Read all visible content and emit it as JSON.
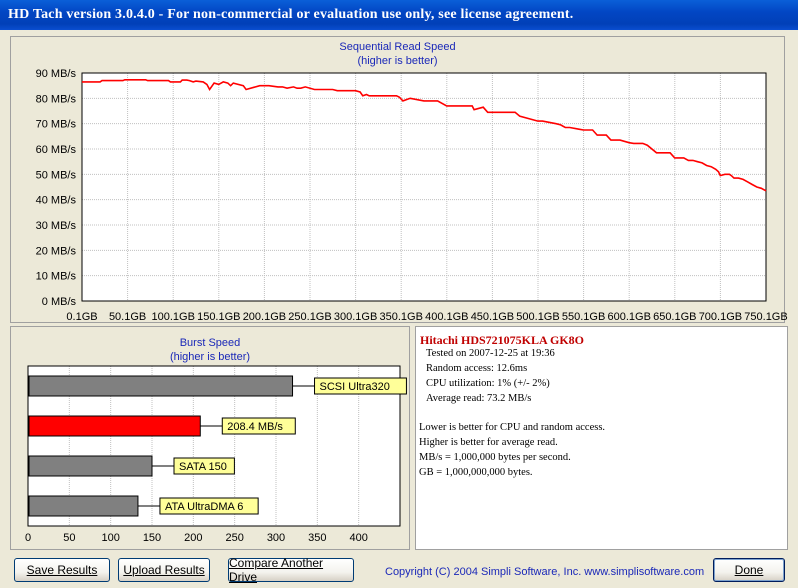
{
  "window": {
    "title": "HD Tach version 3.0.4.0  - For non-commercial or evaluation use only, see license agreement."
  },
  "seq_chart": {
    "chart_data": {
      "type": "line",
      "title": "Sequential Read Speed",
      "subtitle": "(higher is better)",
      "y_ticks": [
        "0 MB/s",
        "10 MB/s",
        "20 MB/s",
        "30 MB/s",
        "40 MB/s",
        "50 MB/s",
        "60 MB/s",
        "70 MB/s",
        "80 MB/s",
        "90 MB/s"
      ],
      "x_ticks": [
        "0.1GB",
        "50.1GB",
        "100.1GB",
        "150.1GB",
        "200.1GB",
        "250.1GB",
        "300.1GB",
        "350.1GB",
        "400.1GB",
        "450.1GB",
        "500.1GB",
        "550.1GB",
        "600.1GB",
        "650.1GB",
        "700.1GB",
        "750.1GB"
      ],
      "xlim": [
        0.1,
        750.1
      ],
      "ylim": [
        0,
        90
      ],
      "grid": true,
      "line_color": "#ff0000",
      "series": [
        {
          "x": [
            0.1,
            20,
            22,
            45,
            47,
            70,
            72,
            95,
            97,
            108,
            110,
            115,
            118,
            122,
            125,
            133,
            137,
            140,
            145,
            150,
            155,
            160,
            163,
            166,
            177,
            180,
            195,
            205,
            215,
            220,
            225,
            232,
            236,
            240,
            245,
            255,
            275,
            280,
            290,
            300,
            305,
            308,
            312,
            315,
            320,
            328,
            335,
            340,
            345,
            348,
            352,
            360,
            375,
            390,
            400,
            415,
            420,
            428,
            430,
            440,
            445,
            450,
            455,
            465,
            470,
            475,
            480,
            500,
            505,
            520,
            525,
            530,
            535,
            545,
            550,
            560,
            565,
            575,
            580,
            590,
            600,
            605,
            615,
            620,
            630,
            635,
            645,
            650,
            660,
            665,
            670,
            675,
            680,
            685,
            690,
            695,
            698,
            700,
            705,
            710,
            712,
            715,
            720,
            725,
            730,
            735,
            740,
            745,
            750.1
          ],
          "y": [
            86.5,
            86.5,
            87,
            87,
            87.3,
            87.3,
            87,
            87,
            86.5,
            86.5,
            87.2,
            87.2,
            87,
            86.5,
            86.8,
            86.5,
            85.5,
            83.5,
            86,
            85.5,
            86.5,
            86,
            85,
            86,
            85,
            83.5,
            85,
            85,
            84.5,
            84.5,
            84,
            84.5,
            84,
            84,
            84.5,
            83.5,
            83.5,
            83,
            83,
            83,
            82.5,
            81,
            81.5,
            81,
            81,
            81,
            81,
            81,
            81,
            80.5,
            79,
            80,
            79,
            79,
            77,
            77,
            77,
            77,
            75.5,
            76.5,
            74.5,
            74.5,
            74.5,
            74.5,
            74.5,
            74.5,
            73,
            71,
            71,
            70,
            69.5,
            68.5,
            68.5,
            67.8,
            67.5,
            67.5,
            65.5,
            65.5,
            63.5,
            63.5,
            62.5,
            62.2,
            62.2,
            61.5,
            58.5,
            58.5,
            58.5,
            56.5,
            56.5,
            55.5,
            55.5,
            55,
            54.5,
            53.5,
            53,
            52,
            51,
            49.5,
            50,
            50,
            49.5,
            48.5,
            48.5,
            48,
            47,
            46,
            45,
            44.5,
            43.5
          ]
        }
      ]
    }
  },
  "burst_chart": {
    "chart_data": {
      "type": "bar",
      "title": "Burst Speed",
      "subtitle": "(higher is better)",
      "orientation": "horizontal",
      "xlim": [
        0,
        450
      ],
      "x_ticks": [
        "0",
        "50",
        "100",
        "150",
        "200",
        "250",
        "300",
        "350",
        "400"
      ],
      "bars": [
        {
          "label": "SCSI Ultra320",
          "value": 320,
          "color": "#808080"
        },
        {
          "label": "208.4 MB/s",
          "value": 208.4,
          "color": "#ff0000"
        },
        {
          "label": "SATA 150",
          "value": 150,
          "color": "#808080"
        },
        {
          "label": "ATA UltraDMA 6",
          "value": 133,
          "color": "#808080"
        }
      ]
    }
  },
  "info": {
    "drive_name": "Hitachi HDS721075KLA GK8O",
    "tested_on": "Tested on 2007-12-25 at 19:36",
    "random_access": "Random access: 12.6ms",
    "cpu_utilization": "CPU utilization: 1% (+/- 2%)",
    "average_read": "Average read: 73.2 MB/s",
    "notes": [
      "Lower is better for CPU and random access.",
      "Higher is better for average read.",
      "MB/s = 1,000,000 bytes per second.",
      "GB = 1,000,000,000 bytes."
    ]
  },
  "buttons": {
    "save_results": "Save Results",
    "upload_results": "Upload Results",
    "compare_drive": "Compare Another Drive",
    "done": "Done"
  },
  "copyright": "Copyright (C) 2004 Simpli Software, Inc. www.simplisoftware.com"
}
